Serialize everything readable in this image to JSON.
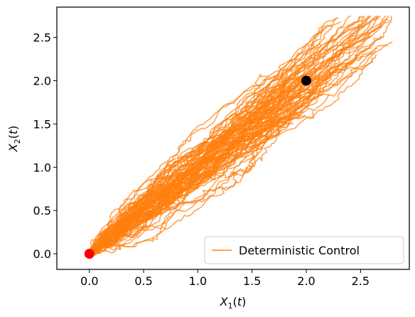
{
  "chart_data": {
    "type": "line",
    "xlabel": "X_1(t)",
    "ylabel": "X_2(t)",
    "xlim": [
      -0.3,
      2.95
    ],
    "ylim": [
      -0.18,
      2.85
    ],
    "x_ticks": [
      0.0,
      0.5,
      1.0,
      1.5,
      2.0,
      2.5
    ],
    "x_tick_labels": [
      "0.0",
      "0.5",
      "1.0",
      "1.5",
      "2.0",
      "2.5"
    ],
    "y_ticks": [
      0.0,
      0.5,
      1.0,
      1.5,
      2.0,
      2.5
    ],
    "y_tick_labels": [
      "0.0",
      "0.5",
      "1.0",
      "1.5",
      "2.0",
      "2.5"
    ],
    "grid": false,
    "legend_position": "lower-right",
    "series": [
      {
        "name": "Deterministic Control",
        "color": "#ff7f0e",
        "opacity": 0.7,
        "path_count": 90,
        "start": [
          0.0,
          0.0
        ],
        "target": [
          2.0,
          2.0
        ],
        "endpoint_range_x": [
          1.6,
          2.8
        ],
        "endpoint_range_y": [
          1.6,
          2.75
        ]
      }
    ],
    "markers": [
      {
        "x": 0.0,
        "y": 0.0,
        "color": "#ff0000"
      },
      {
        "x": 2.0,
        "y": 2.0,
        "color": "#000000"
      }
    ]
  }
}
